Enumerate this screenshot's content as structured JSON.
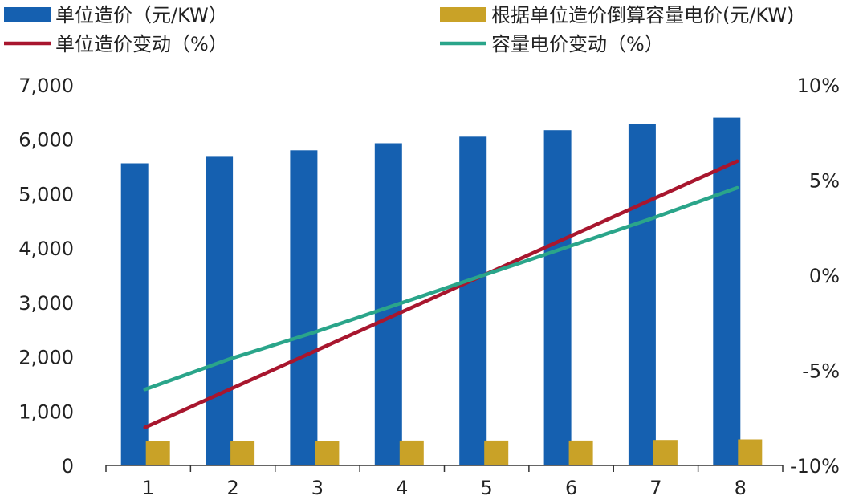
{
  "chart_data": {
    "type": "bar",
    "categories": [
      "1",
      "2",
      "3",
      "4",
      "5",
      "6",
      "7",
      "8"
    ],
    "series": [
      {
        "name": "单位造价（元/KW）",
        "type": "bar",
        "axis": "left",
        "color": "#1560b0",
        "values": [
          5560,
          5680,
          5800,
          5930,
          6050,
          6170,
          6280,
          6400
        ]
      },
      {
        "name": "根据单位造价倒算容量电价(元/KW)",
        "type": "bar",
        "axis": "left",
        "color": "#c9a227",
        "values": [
          450,
          450,
          450,
          460,
          460,
          460,
          470,
          480
        ]
      },
      {
        "name": "单位造价变动（%）",
        "type": "line",
        "axis": "right",
        "color": "#a8162e",
        "values": [
          -8,
          -6,
          -4,
          -2,
          0,
          2,
          4,
          6
        ]
      },
      {
        "name": "容量电价变动（%）",
        "type": "line",
        "axis": "right",
        "color": "#2aa58a",
        "values": [
          -6,
          -4.4,
          -3,
          -1.5,
          0,
          1.5,
          3,
          4.6
        ]
      }
    ],
    "left_axis": {
      "ylim": [
        0,
        7000
      ],
      "ticks": [
        0,
        1000,
        2000,
        3000,
        4000,
        5000,
        6000,
        7000
      ],
      "tick_labels": [
        "0",
        "1,000",
        "2,000",
        "3,000",
        "4,000",
        "5,000",
        "6,000",
        "7,000"
      ]
    },
    "right_axis": {
      "ylim": [
        -10,
        10
      ],
      "ticks": [
        -10,
        -5,
        0,
        5,
        10
      ],
      "tick_labels": [
        "-10%",
        "-5%",
        "0%",
        "5%",
        "10%"
      ]
    },
    "legend": "top",
    "grid": false,
    "title": "",
    "xlabel": "",
    "ylabel": ""
  }
}
